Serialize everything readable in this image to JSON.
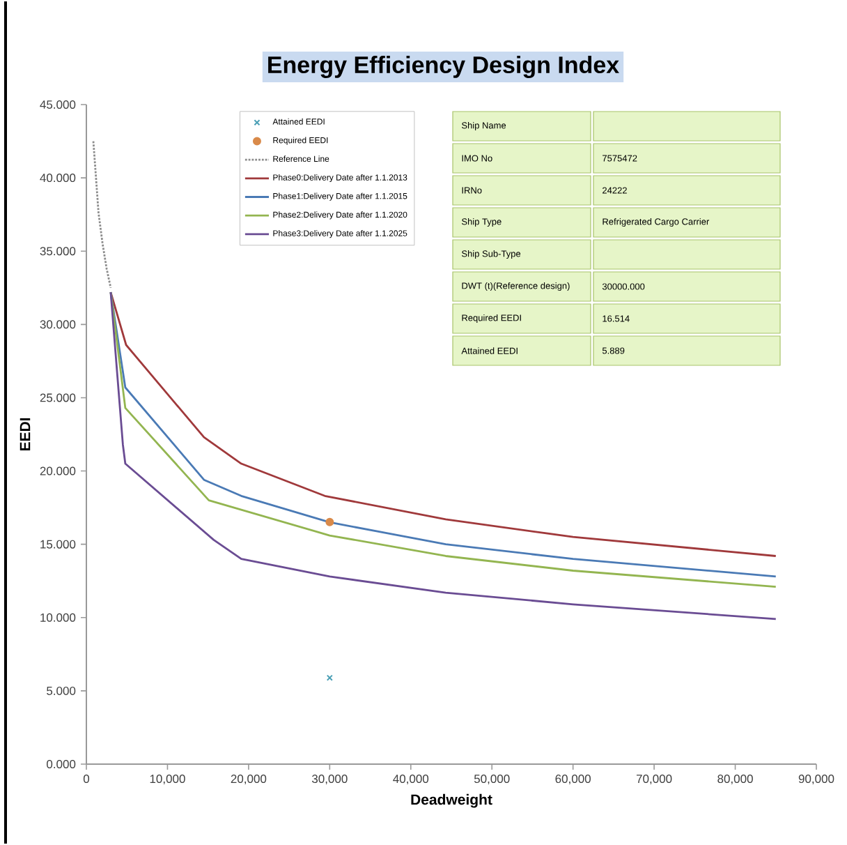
{
  "chart_data": {
    "type": "line",
    "title": "Energy Efficiency Design Index",
    "xlabel": "Deadweight",
    "ylabel": "EEDI",
    "xlim": [
      0,
      90000
    ],
    "ylim": [
      0,
      45
    ],
    "xticks": [
      0,
      {
        "value": 10000,
        "label": "10,000"
      },
      {
        "value": 20000,
        "label": "20,000"
      },
      {
        "value": 30000,
        "label": "30,000"
      },
      {
        "value": 40000,
        "label": "40,000"
      },
      {
        "value": 50000,
        "label": "50,000"
      },
      {
        "value": 60000,
        "label": "60,000"
      },
      {
        "value": 70000,
        "label": "70,000"
      },
      {
        "value": 80000,
        "label": "80,000"
      },
      {
        "value": 90000,
        "label": "90,000"
      }
    ],
    "yticks": [
      {
        "value": 0,
        "label": "0.000"
      },
      {
        "value": 5,
        "label": "5.000"
      },
      {
        "value": 10,
        "label": "10.000"
      },
      {
        "value": 15,
        "label": "15.000"
      },
      {
        "value": 20,
        "label": "20.000"
      },
      {
        "value": 25,
        "label": "25.000"
      },
      {
        "value": 30,
        "label": "30.000"
      },
      {
        "value": 35,
        "label": "35.000"
      },
      {
        "value": 40,
        "label": "40.000"
      },
      {
        "value": 45,
        "label": "45.000"
      }
    ],
    "grid": false,
    "legend": "top",
    "series": [
      {
        "name": "Attained EEDI",
        "type": "scatter",
        "marker": "cross",
        "color": "#4a9fb5",
        "x": [
          30000
        ],
        "values": [
          5.889
        ]
      },
      {
        "name": "Required EEDI",
        "type": "scatter",
        "marker": "circle",
        "color": "#d98a4a",
        "x": [
          30000
        ],
        "values": [
          16.514
        ]
      },
      {
        "name": "Reference Line",
        "line_style": "dotted",
        "color": "#8c8c8c",
        "x": [
          860,
          1500,
          2000,
          2500,
          3000
        ],
        "values": [
          42.5,
          37.6,
          35.5,
          33.8,
          32.5
        ]
      },
      {
        "name": "Phase0:Delivery Date after 1.1.2013",
        "line_style": "solid",
        "color": "#a0393b",
        "x": [
          3000,
          4900,
          14500,
          19100,
          29400,
          44300,
          60000,
          85000
        ],
        "values": [
          32.2,
          28.6,
          22.3,
          20.5,
          18.3,
          16.7,
          15.5,
          14.2
        ]
      },
      {
        "name": "Phase1:Delivery Date after 1.1.2015",
        "line_style": "solid",
        "color": "#4a7ab5",
        "x": [
          3000,
          4800,
          14500,
          19100,
          30000,
          44300,
          60000,
          85000
        ],
        "values": [
          32.2,
          25.7,
          19.4,
          18.3,
          16.5,
          15.0,
          14.0,
          12.8
        ]
      },
      {
        "name": "Phase2:Delivery Date after 1.1.2020",
        "line_style": "solid",
        "color": "#93b550",
        "x": [
          3000,
          4800,
          15100,
          30000,
          44300,
          60000,
          85000
        ],
        "values": [
          32.2,
          24.3,
          18.0,
          15.6,
          14.2,
          13.2,
          12.1
        ]
      },
      {
        "name": "Phase3:Delivery Date after 1.1.2025",
        "line_style": "solid",
        "color": "#6a4c93",
        "x": [
          3000,
          4500,
          4800,
          15700,
          19100,
          30000,
          44300,
          60000,
          85000
        ],
        "values": [
          32.2,
          21.8,
          20.5,
          15.3,
          14.0,
          12.8,
          11.7,
          10.9,
          9.9
        ]
      }
    ],
    "annotations": [
      "Ship Name",
      "IMO No",
      "IRNo",
      "Ship Type",
      "Ship Sub-Type",
      "DWT (t)(Reference design)",
      "Required EEDI",
      "Attained EEDI",
      "7575472",
      "24222",
      "Refrigerated Cargo Carrier",
      "30000.000",
      "16.514",
      "5.889"
    ]
  }
}
